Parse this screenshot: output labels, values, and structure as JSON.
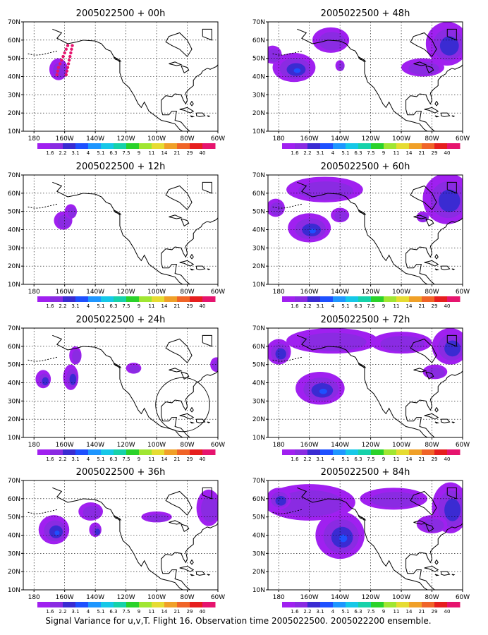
{
  "caption": "Signal Variance for u,v,T. Flight 16. Observation time 2005022500. 2005022200 ensemble.",
  "axes": {
    "lat_ticks": [
      "10N",
      "20N",
      "30N",
      "40N",
      "50N",
      "60N",
      "70N"
    ],
    "lat_values": [
      10,
      20,
      30,
      40,
      50,
      60,
      70
    ],
    "lon_ticks": [
      "180",
      "160W",
      "140W",
      "120W",
      "100W",
      "80W",
      "60W"
    ],
    "lon_values": [
      -180,
      -160,
      -140,
      -120,
      -100,
      -80,
      -60
    ],
    "lon_range": [
      -187,
      -60
    ],
    "lat_range": [
      10,
      70
    ],
    "grid": true
  },
  "colorbar": {
    "labels": [
      "1.6",
      "2.2",
      "3.1",
      "4",
      "5.1",
      "6.3",
      "7.5",
      "9",
      "11",
      "14",
      "21",
      "29",
      "40"
    ],
    "colors": [
      "#a020f0",
      "#8a2be2",
      "#3a2bd2",
      "#1e50ff",
      "#1e96ff",
      "#16c8e8",
      "#16d2aa",
      "#2ad22a",
      "#a0e632",
      "#e6dc32",
      "#f0a028",
      "#f06428",
      "#e61e1e",
      "#e6146e"
    ]
  },
  "chart_data": [
    {
      "type": "contour map",
      "title": "2005022500 + 00h",
      "lead_hours": 0,
      "blobs": [
        {
          "lon": -164,
          "lat": 44,
          "rlon": 6,
          "rlat": 6,
          "value": 2
        }
      ],
      "flight_track": [
        [
          -158,
          57
        ],
        [
          -159,
          55
        ],
        [
          -160,
          53
        ],
        [
          -161,
          51
        ],
        [
          -162,
          49
        ],
        [
          -163,
          47
        ],
        [
          -164,
          45
        ],
        [
          -164.5,
          43
        ],
        [
          -165,
          41
        ],
        [
          -155,
          57
        ],
        [
          -155.5,
          55
        ],
        [
          -156,
          53
        ],
        [
          -156.5,
          51
        ],
        [
          -157,
          49
        ],
        [
          -157.5,
          47
        ],
        [
          -158,
          45
        ],
        [
          -158.5,
          43
        ],
        [
          -159,
          41
        ]
      ],
      "circle": null
    },
    {
      "type": "contour map",
      "title": "2005022500 + 12h",
      "lead_hours": 12,
      "blobs": [
        {
          "lon": -161,
          "lat": 45,
          "rlon": 6,
          "rlat": 5,
          "value": 2
        },
        {
          "lon": -156,
          "lat": 50,
          "rlon": 4,
          "rlat": 4,
          "value": 2
        }
      ],
      "flight_track": [],
      "circle": null
    },
    {
      "type": "contour map",
      "title": "2005022500 + 24h",
      "lead_hours": 24,
      "blobs": [
        {
          "lon": -174,
          "lat": 42,
          "rlon": 5,
          "rlat": 5,
          "value": 2.5
        },
        {
          "lon": -156,
          "lat": 43,
          "rlon": 5,
          "rlat": 7,
          "value": 2.5
        },
        {
          "lon": -153,
          "lat": 55,
          "rlon": 4,
          "rlat": 5,
          "value": 2
        },
        {
          "lon": -115,
          "lat": 48,
          "rlon": 5,
          "rlat": 3,
          "value": 2
        },
        {
          "lon": -61,
          "lat": 50,
          "rlon": 4,
          "rlat": 4,
          "value": 2
        }
      ],
      "flight_track": [],
      "circle": {
        "lon": -83,
        "lat": 28,
        "r_deg": 8
      }
    },
    {
      "type": "contour map",
      "title": "2005022500 + 36h",
      "lead_hours": 36,
      "blobs": [
        {
          "lon": -167,
          "lat": 43,
          "rlon": 10,
          "rlat": 8,
          "value": 4
        },
        {
          "lon": -140,
          "lat": 43,
          "rlon": 4,
          "rlat": 4,
          "value": 3
        },
        {
          "lon": -143,
          "lat": 53,
          "rlon": 8,
          "rlat": 5,
          "value": 2
        },
        {
          "lon": -100,
          "lat": 50,
          "rlon": 10,
          "rlat": 3,
          "value": 2
        },
        {
          "lon": -66,
          "lat": 55,
          "rlon": 8,
          "rlat": 10,
          "value": 2
        }
      ],
      "flight_track": [],
      "circle": null
    },
    {
      "type": "contour map",
      "title": "2005022500 + 48h",
      "lead_hours": 48,
      "blobs": [
        {
          "lon": -170,
          "lat": 45,
          "rlon": 14,
          "rlat": 8,
          "value": 4
        },
        {
          "lon": -146,
          "lat": 60,
          "rlon": 12,
          "rlat": 7,
          "value": 2
        },
        {
          "lon": -184,
          "lat": 52,
          "rlon": 6,
          "rlat": 5,
          "value": 2
        },
        {
          "lon": -140,
          "lat": 46,
          "rlon": 3,
          "rlat": 3,
          "value": 2
        },
        {
          "lon": -86,
          "lat": 45,
          "rlon": 14,
          "rlat": 5,
          "value": 2
        },
        {
          "lon": -70,
          "lat": 58,
          "rlon": 14,
          "rlat": 12,
          "value": 2.5
        }
      ],
      "flight_track": [],
      "circle": null
    },
    {
      "type": "contour map",
      "title": "2005022500 + 60h",
      "lead_hours": 60,
      "blobs": [
        {
          "lon": -160,
          "lat": 41,
          "rlon": 14,
          "rlat": 8,
          "value": 5
        },
        {
          "lon": -140,
          "lat": 48,
          "rlon": 6,
          "rlat": 4,
          "value": 2
        },
        {
          "lon": -150,
          "lat": 62,
          "rlon": 25,
          "rlat": 7,
          "value": 2
        },
        {
          "lon": -182,
          "lat": 52,
          "rlon": 6,
          "rlat": 5,
          "value": 2
        },
        {
          "lon": -70,
          "lat": 57,
          "rlon": 16,
          "rlat": 14,
          "value": 2.5
        },
        {
          "lon": -86,
          "lat": 47,
          "rlon": 4,
          "rlat": 3,
          "value": 2
        }
      ],
      "flight_track": [],
      "circle": null
    },
    {
      "type": "contour map",
      "title": "2005022500 + 72h",
      "lead_hours": 72,
      "blobs": [
        {
          "lon": -153,
          "lat": 37,
          "rlon": 16,
          "rlat": 9,
          "value": 5
        },
        {
          "lon": -180,
          "lat": 57,
          "rlon": 8,
          "rlat": 7,
          "value": 2.5
        },
        {
          "lon": -145,
          "lat": 63,
          "rlon": 30,
          "rlat": 7,
          "value": 2
        },
        {
          "lon": -100,
          "lat": 62,
          "rlon": 20,
          "rlat": 6,
          "value": 2
        },
        {
          "lon": -68,
          "lat": 60,
          "rlon": 12,
          "rlat": 10,
          "value": 2.5
        },
        {
          "lon": -78,
          "lat": 46,
          "rlon": 8,
          "rlat": 4,
          "value": 2
        }
      ],
      "flight_track": [],
      "circle": null
    },
    {
      "type": "contour map",
      "title": "2005022500 + 84h",
      "lead_hours": 84,
      "blobs": [
        {
          "lon": -140,
          "lat": 40,
          "rlon": 16,
          "rlat": 13,
          "value": 5
        },
        {
          "lon": -160,
          "lat": 58,
          "rlon": 30,
          "rlat": 10,
          "value": 2
        },
        {
          "lon": -180,
          "lat": 60,
          "rlon": 8,
          "rlat": 6,
          "value": 2.5
        },
        {
          "lon": -105,
          "lat": 60,
          "rlon": 22,
          "rlat": 6,
          "value": 2
        },
        {
          "lon": -68,
          "lat": 55,
          "rlon": 12,
          "rlat": 14,
          "value": 2.5
        },
        {
          "lon": -80,
          "lat": 46,
          "rlon": 10,
          "rlat": 5,
          "value": 2
        }
      ],
      "flight_track": [],
      "circle": null
    }
  ]
}
